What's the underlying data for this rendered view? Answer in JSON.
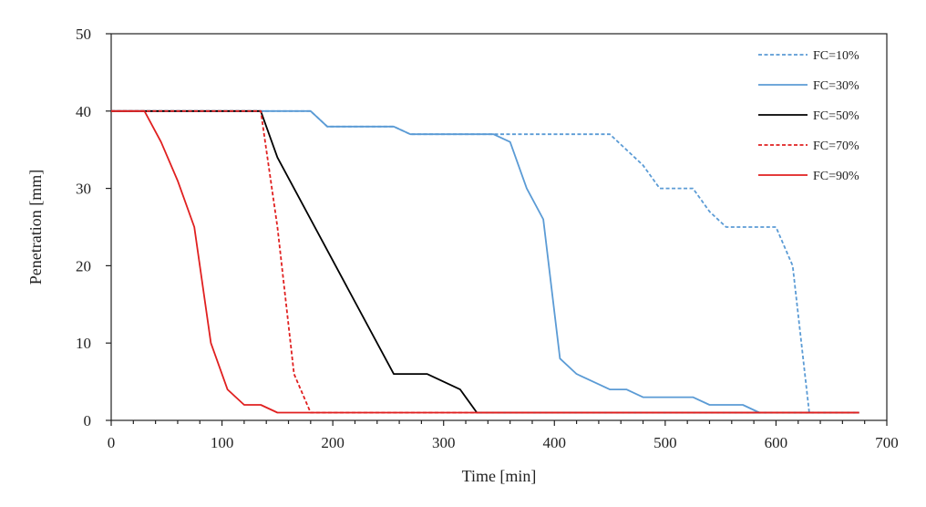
{
  "chart_data": {
    "type": "line",
    "xlabel": "Time [min]",
    "ylabel": "Penetration [mm]",
    "xlim": [
      0,
      700
    ],
    "ylim": [
      0,
      50
    ],
    "xticks": [
      0,
      100,
      200,
      300,
      400,
      500,
      600,
      700
    ],
    "yticks": [
      0,
      10,
      20,
      30,
      40,
      50
    ],
    "grid": false,
    "legend_position": "top-right",
    "series": [
      {
        "name": "FC=10%",
        "color": "#5b9bd5",
        "dash": "dashed",
        "x": [
          0,
          180,
          195,
          255,
          270,
          345,
          450,
          465,
          480,
          495,
          525,
          540,
          555,
          600,
          615,
          630,
          675
        ],
        "y": [
          40,
          40,
          38,
          38,
          37,
          37,
          37,
          35,
          33,
          30,
          30,
          27,
          25,
          25,
          20,
          1,
          1
        ]
      },
      {
        "name": "FC=30%",
        "color": "#5b9bd5",
        "dash": "solid",
        "x": [
          0,
          180,
          195,
          255,
          270,
          345,
          360,
          375,
          390,
          405,
          420,
          435,
          450,
          465,
          480,
          525,
          540,
          570,
          585,
          675
        ],
        "y": [
          40,
          40,
          38,
          38,
          37,
          37,
          36,
          30,
          26,
          8,
          6,
          5,
          4,
          4,
          3,
          3,
          2,
          2,
          1,
          1
        ]
      },
      {
        "name": "FC=50%",
        "color": "#000000",
        "dash": "solid",
        "x": [
          0,
          135,
          150,
          255,
          285,
          315,
          330,
          675
        ],
        "y": [
          40,
          40,
          34,
          6,
          6,
          4,
          1,
          1
        ]
      },
      {
        "name": "FC=70%",
        "color": "#e02020",
        "dash": "dashed",
        "x": [
          0,
          135,
          150,
          165,
          180,
          675
        ],
        "y": [
          40,
          40,
          25,
          6,
          1,
          1
        ]
      },
      {
        "name": "FC=90%",
        "color": "#e02020",
        "dash": "solid",
        "x": [
          0,
          30,
          45,
          60,
          75,
          90,
          105,
          120,
          135,
          150,
          675
        ],
        "y": [
          40,
          40,
          36,
          31,
          25,
          10,
          4,
          2,
          2,
          1,
          1
        ]
      }
    ]
  }
}
